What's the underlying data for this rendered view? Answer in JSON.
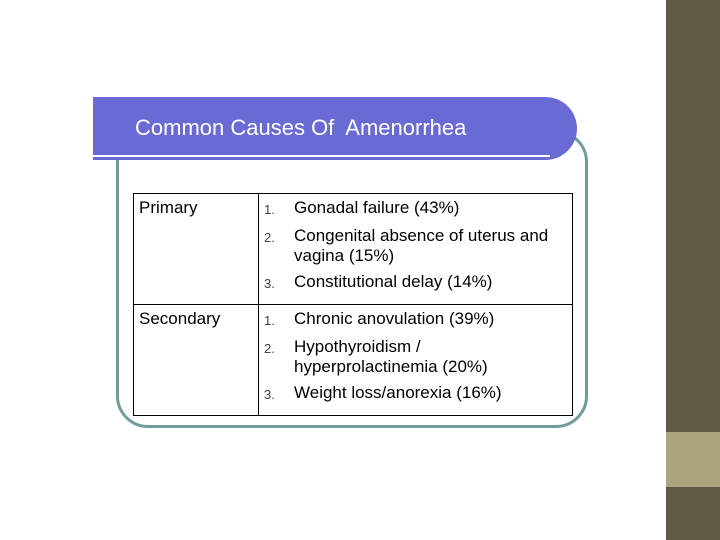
{
  "title": "Common Causes Of  Amenorrhea",
  "table": {
    "rows": [
      {
        "label": "Primary",
        "items": [
          {
            "marker": "1.",
            "text": "Gonadal failure (43%)"
          },
          {
            "marker": "2.",
            "text": "Congenital absence of uterus and vagina (15%)"
          },
          {
            "marker": "3.",
            "text": "Constitutional delay (14%)"
          }
        ]
      },
      {
        "label": "Secondary",
        "items": [
          {
            "marker": "1.",
            "text": "Chronic anovulation (39%)"
          },
          {
            "marker": "2.",
            "text": "Hypothyroidism / hyperprolactinemia (20%)"
          },
          {
            "marker": "3.",
            "text": "Weight loss/anorexia (16%)"
          }
        ]
      }
    ]
  }
}
